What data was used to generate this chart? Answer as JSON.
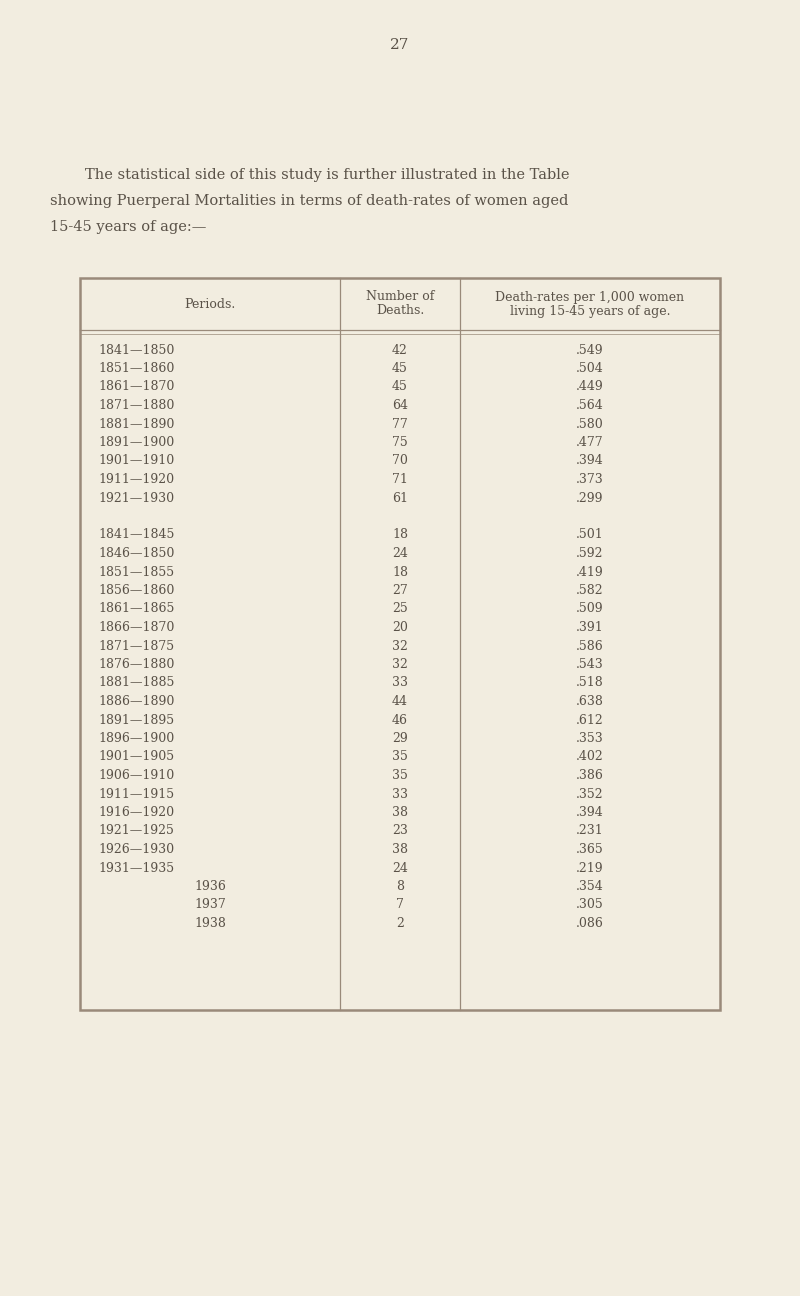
{
  "page_number": "27",
  "intro_text_line1": "The statistical side of this study is further illustrated in the Table",
  "intro_text_line2": "showing Puerperal Mortalities in terms of death-rates of women aged",
  "intro_text_line3": "15-45 years of age:—",
  "col_headers": [
    "Periods.",
    "Number of\nDeaths.",
    "Death-rates per 1,000 women\nliving 15-45 years of age."
  ],
  "section1": [
    [
      "1841—1850",
      "42",
      ".549"
    ],
    [
      "1851—1860",
      "45",
      ".504"
    ],
    [
      "1861—1870",
      "45",
      ".449"
    ],
    [
      "1871—1880",
      "64",
      ".564"
    ],
    [
      "1881—1890",
      "77",
      ".580"
    ],
    [
      "1891—1900",
      "75",
      ".477"
    ],
    [
      "1901—1910",
      "70",
      ".394"
    ],
    [
      "1911—1920",
      "71",
      ".373"
    ],
    [
      "1921—1930",
      "61",
      ".299"
    ]
  ],
  "section2": [
    [
      "1841—1845",
      "18",
      ".501"
    ],
    [
      "1846—1850",
      "24",
      ".592"
    ],
    [
      "1851—1855",
      "18",
      ".419"
    ],
    [
      "1856—1860",
      "27",
      ".582"
    ],
    [
      "1861—1865",
      "25",
      ".509"
    ],
    [
      "1866—1870",
      "20",
      ".391"
    ],
    [
      "1871—1875",
      "32",
      ".586"
    ],
    [
      "1876—1880",
      "32",
      ".543"
    ],
    [
      "1881—1885",
      "33",
      ".518"
    ],
    [
      "1886—1890",
      "44",
      ".638"
    ],
    [
      "1891—1895",
      "46",
      ".612"
    ],
    [
      "1896—1900",
      "29",
      ".353"
    ],
    [
      "1901—1905",
      "35",
      ".402"
    ],
    [
      "1906—1910",
      "35",
      ".386"
    ],
    [
      "1911—1915",
      "33",
      ".352"
    ],
    [
      "1916—1920",
      "38",
      ".394"
    ],
    [
      "1921—1925",
      "23",
      ".231"
    ],
    [
      "1926—1930",
      "38",
      ".365"
    ],
    [
      "1931—1935",
      "24",
      ".219"
    ],
    [
      "1936",
      "8",
      ".354"
    ],
    [
      "1937",
      "7",
      ".305"
    ],
    [
      "1938",
      "2",
      ".086"
    ]
  ],
  "bg_color": "#f2ede0",
  "text_color": "#5a5248",
  "border_color": "#9a8a7a",
  "font_size_body": 9.0,
  "font_size_header": 9.0,
  "font_size_page": 11,
  "font_size_intro": 10.5
}
